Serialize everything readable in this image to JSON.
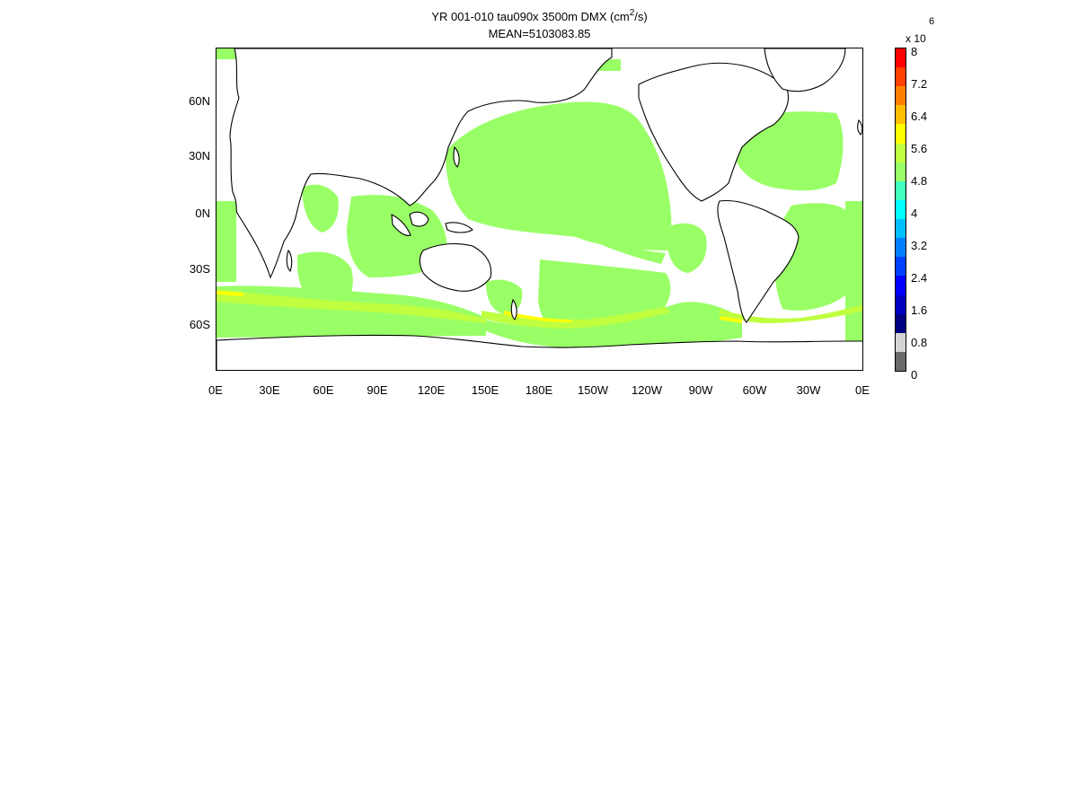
{
  "title": {
    "line1_prefix": "YR 001-010 tau090x 3500m DMX (cm",
    "line1_sup": "2",
    "line1_suffix": "/s)",
    "line2": "MEAN=5103083.85"
  },
  "lat_labels": [
    "60N",
    "30N",
    "0N",
    "30S",
    "60S"
  ],
  "lon_labels": [
    "0E",
    "30E",
    "60E",
    "90E",
    "120E",
    "150E",
    "180E",
    "150W",
    "120W",
    "90W",
    "60W",
    "30W",
    "0E"
  ],
  "colorbar": {
    "multiplier": "x 10",
    "exponent": "6",
    "tick_labels": [
      "8",
      "7.2",
      "6.4",
      "5.6",
      "4.8",
      "4",
      "3.2",
      "2.4",
      "1.6",
      "0.8",
      "0"
    ],
    "colors_top_to_bottom": [
      "#ff0000",
      "#ff4000",
      "#ff8000",
      "#ffbf00",
      "#ffff00",
      "#bfff40",
      "#99ff66",
      "#40ffbf",
      "#00ffff",
      "#00bfff",
      "#0080ff",
      "#0040ff",
      "#0000ff",
      "#0000bf",
      "#000080",
      "#d3d3d3",
      "#696969"
    ]
  },
  "field_colors": {
    "main": "#99ff66",
    "high": "#bfff40",
    "peak": "#ffff00",
    "coast": "#000000"
  }
}
